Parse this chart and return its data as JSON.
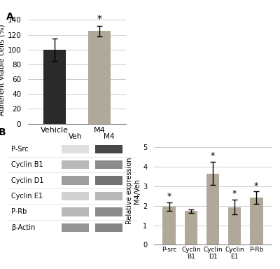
{
  "panel_A": {
    "categories": [
      "Vehicle",
      "M4"
    ],
    "values": [
      100,
      125
    ],
    "errors": [
      15,
      7
    ],
    "bar_colors": [
      "#2a2a2a",
      "#b0a898"
    ],
    "ylabel": "Adherent viable cells (%)",
    "ylim": [
      0,
      145
    ],
    "yticks": [
      0,
      20,
      40,
      60,
      80,
      100,
      120,
      140
    ],
    "significance": [
      false,
      true
    ],
    "label": "A"
  },
  "panel_B_bar": {
    "categories": [
      "P-src",
      "Cyclin\nB1",
      "Cyclin\nD1",
      "Cyclin\nE1",
      "P-Rb"
    ],
    "values": [
      1.95,
      1.72,
      3.65,
      1.92,
      2.4
    ],
    "errors": [
      0.22,
      0.09,
      0.58,
      0.38,
      0.32
    ],
    "bar_color": "#b0a898",
    "ylabel": "Relative expression\nM4/Veh",
    "ylim": [
      0,
      5.5
    ],
    "yticks": [
      0,
      1,
      2,
      3,
      4,
      5
    ],
    "significance": [
      true,
      false,
      true,
      true,
      true
    ],
    "label": "B"
  },
  "wb_labels": [
    "P-Src",
    "Cyclin B1",
    "Cyclin D1",
    "Cyclin E1",
    "P-Rb",
    "β-Actin"
  ],
  "wb_col_labels": [
    "Veh",
    "M4"
  ],
  "wb_veh_gray": [
    0.88,
    0.72,
    0.62,
    0.82,
    0.72,
    0.58
  ],
  "wb_m4_gray": [
    0.28,
    0.55,
    0.45,
    0.72,
    0.55,
    0.52
  ],
  "background_color": "#ffffff",
  "grid_color": "#cccccc",
  "text_color": "#000000",
  "fontsize": 7,
  "label_fontsize": 10
}
